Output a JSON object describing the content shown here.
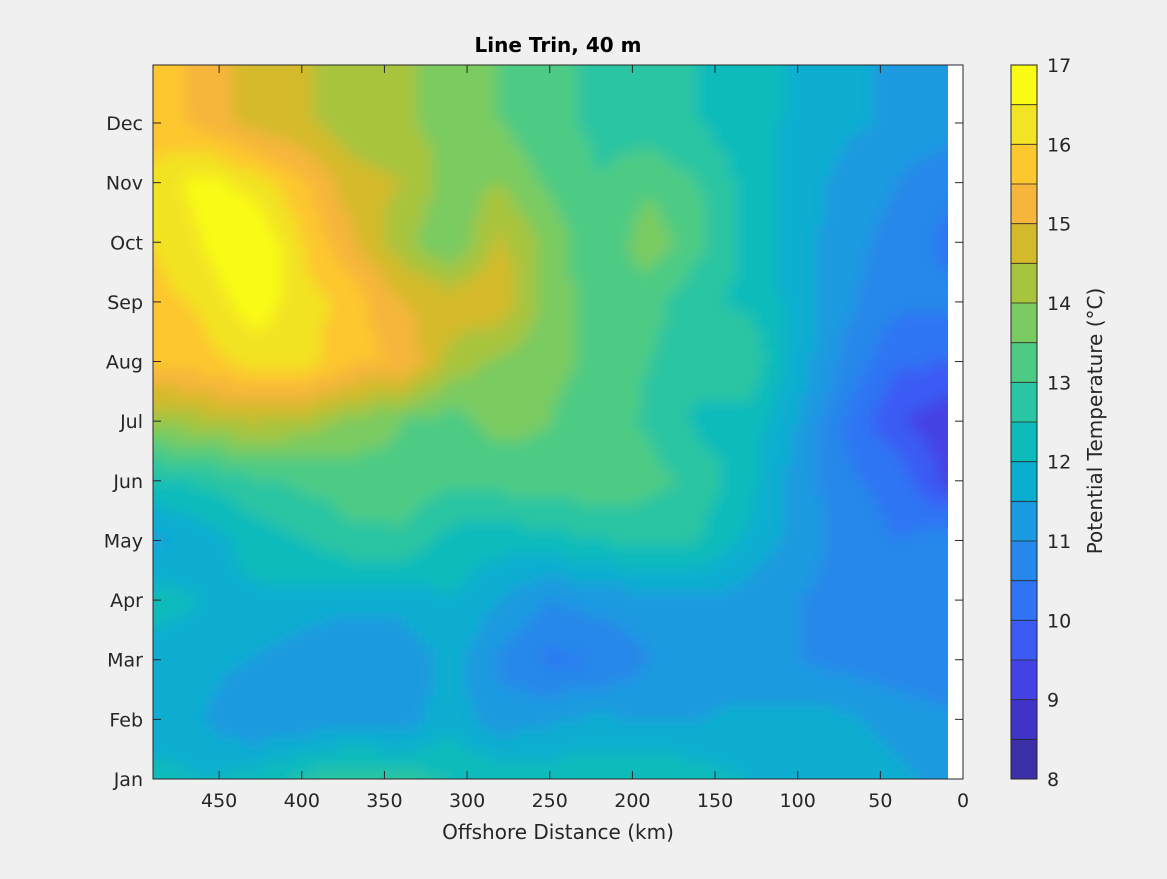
{
  "chart_data": {
    "type": "heatmap",
    "subtype": "filled-contour",
    "title": "Line Trin, 40 m",
    "xlabel": "Offshore Distance (km)",
    "ylabel": "",
    "x_direction": "reversed",
    "xlim": [
      0,
      490
    ],
    "x_ticks": [
      450,
      400,
      350,
      300,
      250,
      200,
      150,
      100,
      50,
      0
    ],
    "y_ticks": [
      "Jan",
      "Feb",
      "Mar",
      "Apr",
      "May",
      "Jun",
      "Jul",
      "Aug",
      "Sep",
      "Oct",
      "Nov",
      "Dec"
    ],
    "colorbar": {
      "label": "Potential Temperature (°C)",
      "range": [
        8,
        17
      ],
      "ticks": [
        8,
        9,
        10,
        11,
        12,
        13,
        14,
        15,
        16,
        17
      ],
      "step": 0.5,
      "colors": [
        "#3d2fa8",
        "#4034c8",
        "#4442e4",
        "#3b5bf4",
        "#2e74f4",
        "#2588ea",
        "#1a9ae0",
        "#0aaed0",
        "#0ebbbb",
        "#2ac5a2",
        "#4dcb84",
        "#7acb61",
        "#a8c43c",
        "#d4ba2a",
        "#f6b53b",
        "#fdc72e",
        "#f2e324",
        "#f9fb15"
      ]
    },
    "data_x_km": [
      490,
      460,
      430,
      400,
      370,
      340,
      310,
      280,
      250,
      220,
      190,
      160,
      130,
      100,
      70,
      40,
      10
    ],
    "data_y_month": [
      1,
      2,
      3,
      4,
      5,
      6,
      7,
      8,
      9,
      10,
      11,
      12
    ],
    "values": [
      [
        12.2,
        12.0,
        12.2,
        12.6,
        12.8,
        12.7,
        12.5,
        12.3,
        12.3,
        12.4,
        12.5,
        12.2,
        12.0,
        11.8,
        11.8,
        11.6,
        11.4
      ],
      [
        11.7,
        11.5,
        11.0,
        11.1,
        11.3,
        11.2,
        11.8,
        11.2,
        11.4,
        11.6,
        11.4,
        11.5,
        11.6,
        11.7,
        11.6,
        11.3,
        11.1
      ],
      [
        11.8,
        11.7,
        11.5,
        11.2,
        11.1,
        11.1,
        11.7,
        10.9,
        10.4,
        10.5,
        11.0,
        11.3,
        11.2,
        11.0,
        10.8,
        10.7,
        10.6
      ],
      [
        12.2,
        12.0,
        11.9,
        11.8,
        11.6,
        11.7,
        12.0,
        11.5,
        11.0,
        11.2,
        11.3,
        11.4,
        11.3,
        11.0,
        10.8,
        10.6,
        10.5
      ],
      [
        11.4,
        11.7,
        12.2,
        12.5,
        12.9,
        12.9,
        12.3,
        12.2,
        12.3,
        12.5,
        12.6,
        12.5,
        11.9,
        11.3,
        10.8,
        10.5,
        10.7
      ],
      [
        12.4,
        12.6,
        12.9,
        13.1,
        13.2,
        13.3,
        13.1,
        13.2,
        13.3,
        13.3,
        13.2,
        12.8,
        12.2,
        11.3,
        10.6,
        10.3,
        9.4
      ],
      [
        14.1,
        14.3,
        14.5,
        14.3,
        13.9,
        13.5,
        13.3,
        13.7,
        13.5,
        13.3,
        12.9,
        12.4,
        12.3,
        11.5,
        10.4,
        9.6,
        9.1
      ],
      [
        15.6,
        15.8,
        16.2,
        16.3,
        15.6,
        15.5,
        14.3,
        13.9,
        13.6,
        13.4,
        13.0,
        12.7,
        12.9,
        11.8,
        10.8,
        10.1,
        10.0
      ],
      [
        15.8,
        16.1,
        16.8,
        16.2,
        15.8,
        15.0,
        14.8,
        14.9,
        13.7,
        13.3,
        13.2,
        12.6,
        12.4,
        11.8,
        11.1,
        10.6,
        10.6
      ],
      [
        16.0,
        16.5,
        17.1,
        16.0,
        15.1,
        14.2,
        13.5,
        14.6,
        13.8,
        13.1,
        13.8,
        13.2,
        12.3,
        11.7,
        11.2,
        10.8,
        10.4
      ],
      [
        16.2,
        16.7,
        16.3,
        15.6,
        14.7,
        14.5,
        13.8,
        14.0,
        13.4,
        13.0,
        13.4,
        13.0,
        12.3,
        11.8,
        11.3,
        11.0,
        10.6
      ],
      [
        15.7,
        15.4,
        14.8,
        14.6,
        14.2,
        14.1,
        13.8,
        13.5,
        13.1,
        12.9,
        12.7,
        12.5,
        12.2,
        11.9,
        11.6,
        11.4,
        11.3
      ]
    ]
  }
}
